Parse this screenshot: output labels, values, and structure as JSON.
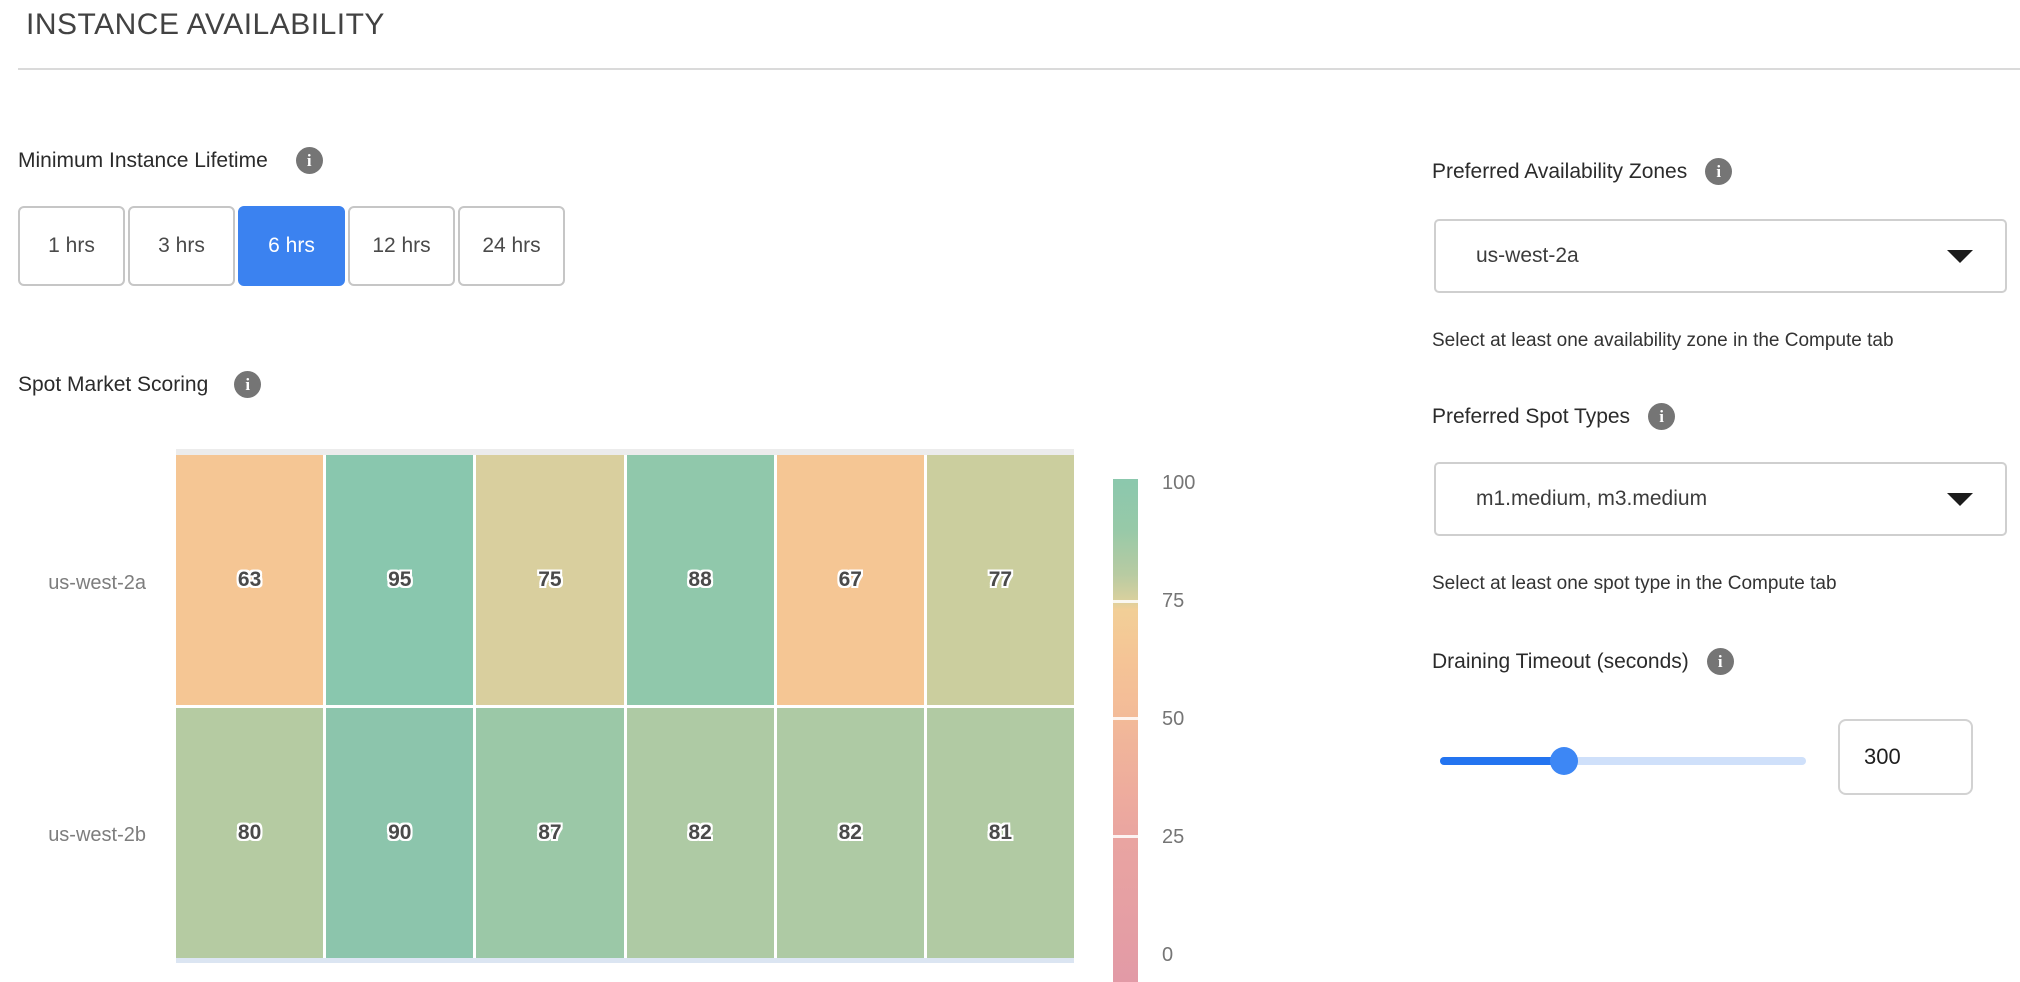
{
  "header": {
    "title": "INSTANCE AVAILABILITY"
  },
  "icons": {
    "info": "i"
  },
  "colors": {
    "accent_blue": "#3b82f0",
    "slider_fill": "#2374f0",
    "slider_track": "#cfe0fa",
    "info_gray": "#757575"
  },
  "lifetime": {
    "label": "Minimum Instance Lifetime",
    "options": [
      {
        "label": "1 hrs",
        "selected": false
      },
      {
        "label": "3 hrs",
        "selected": false
      },
      {
        "label": "6 hrs",
        "selected": true
      },
      {
        "label": "12 hrs",
        "selected": false
      },
      {
        "label": "24 hrs",
        "selected": false
      }
    ]
  },
  "scoring": {
    "label": "Spot Market Scoring"
  },
  "chart_data": {
    "type": "heatmap",
    "title": "Spot Market Scoring",
    "rows": [
      "us-west-2a",
      "us-west-2b"
    ],
    "num_columns": 6,
    "x_labels": [],
    "value_range": [
      0,
      100
    ],
    "series": [
      {
        "name": "us-west-2a",
        "values": [
          63,
          95,
          75,
          88,
          67,
          77
        ],
        "cell_colors": [
          "#f5c694",
          "#89c7ae",
          "#d9cf9e",
          "#90c8ab",
          "#f5c694",
          "#cbce9e"
        ]
      },
      {
        "name": "us-west-2b",
        "values": [
          80,
          90,
          87,
          82,
          82,
          81
        ],
        "cell_colors": [
          "#b5cba2",
          "#8cc5ac",
          "#9bc8a7",
          "#aecaa4",
          "#aecaa4",
          "#b1caa3"
        ]
      }
    ],
    "legend": {
      "position": "right",
      "ticks": [
        "100",
        "75",
        "50",
        "25",
        "0"
      ]
    }
  },
  "zones": {
    "label": "Preferred Availability Zones",
    "value": "us-west-2a",
    "helper": "Select at least one availability zone in the Compute tab"
  },
  "spot_types": {
    "label": "Preferred Spot Types",
    "value": "m1.medium, m3.medium",
    "helper": "Select at least one spot type in the Compute tab"
  },
  "draining": {
    "label": "Draining Timeout (seconds)",
    "value": "300",
    "slider_percent": 34
  }
}
